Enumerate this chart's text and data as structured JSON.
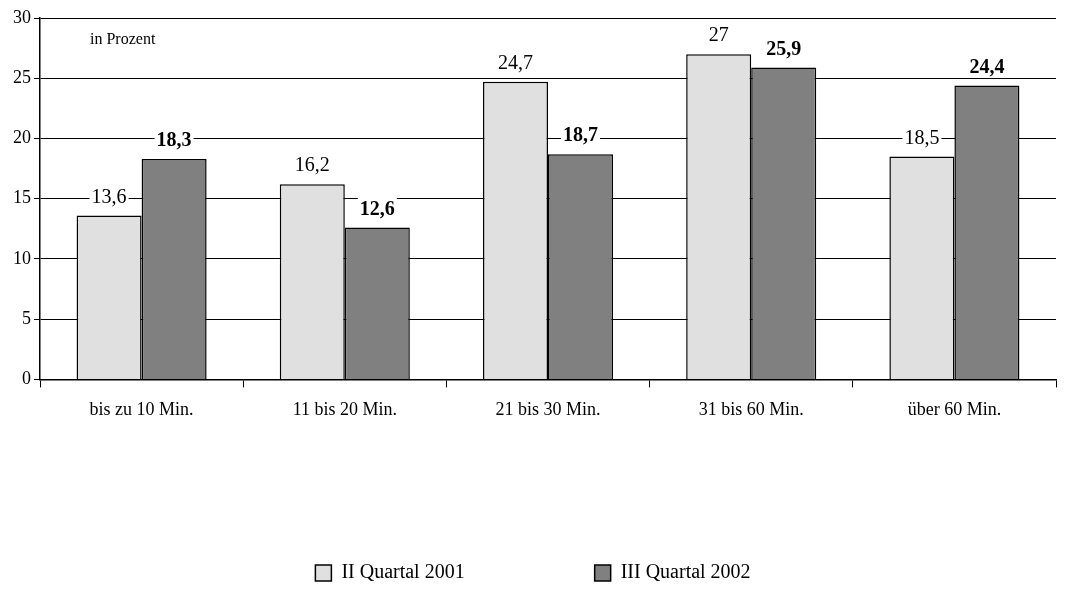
{
  "chart_data": {
    "type": "bar",
    "categories": [
      "bis zu 10 Min.",
      "11 bis 20 Min.",
      "21 bis 30 Min.",
      "31 bis 60 Min.",
      "über 60 Min."
    ],
    "series": [
      {
        "name": "II Quartal 2001",
        "color": "#e0e0e0",
        "values": [
          13.6,
          16.2,
          24.7,
          27,
          18.5
        ],
        "value_labels": [
          "13,6",
          "16,2",
          "24,7",
          "27",
          "18,5"
        ]
      },
      {
        "name": "III Quartal 2002",
        "color": "#808080",
        "values": [
          18.3,
          12.6,
          18.7,
          25.9,
          24.4
        ],
        "value_labels": [
          "18,3",
          "12,6",
          "18,7",
          "25,9",
          "24,4"
        ]
      }
    ],
    "ylim": [
      0,
      30
    ],
    "yticks": [
      0,
      5,
      10,
      15,
      20,
      25,
      30
    ],
    "grid": "y",
    "legend": "bottom",
    "annotations": [
      "in Prozent"
    ]
  }
}
